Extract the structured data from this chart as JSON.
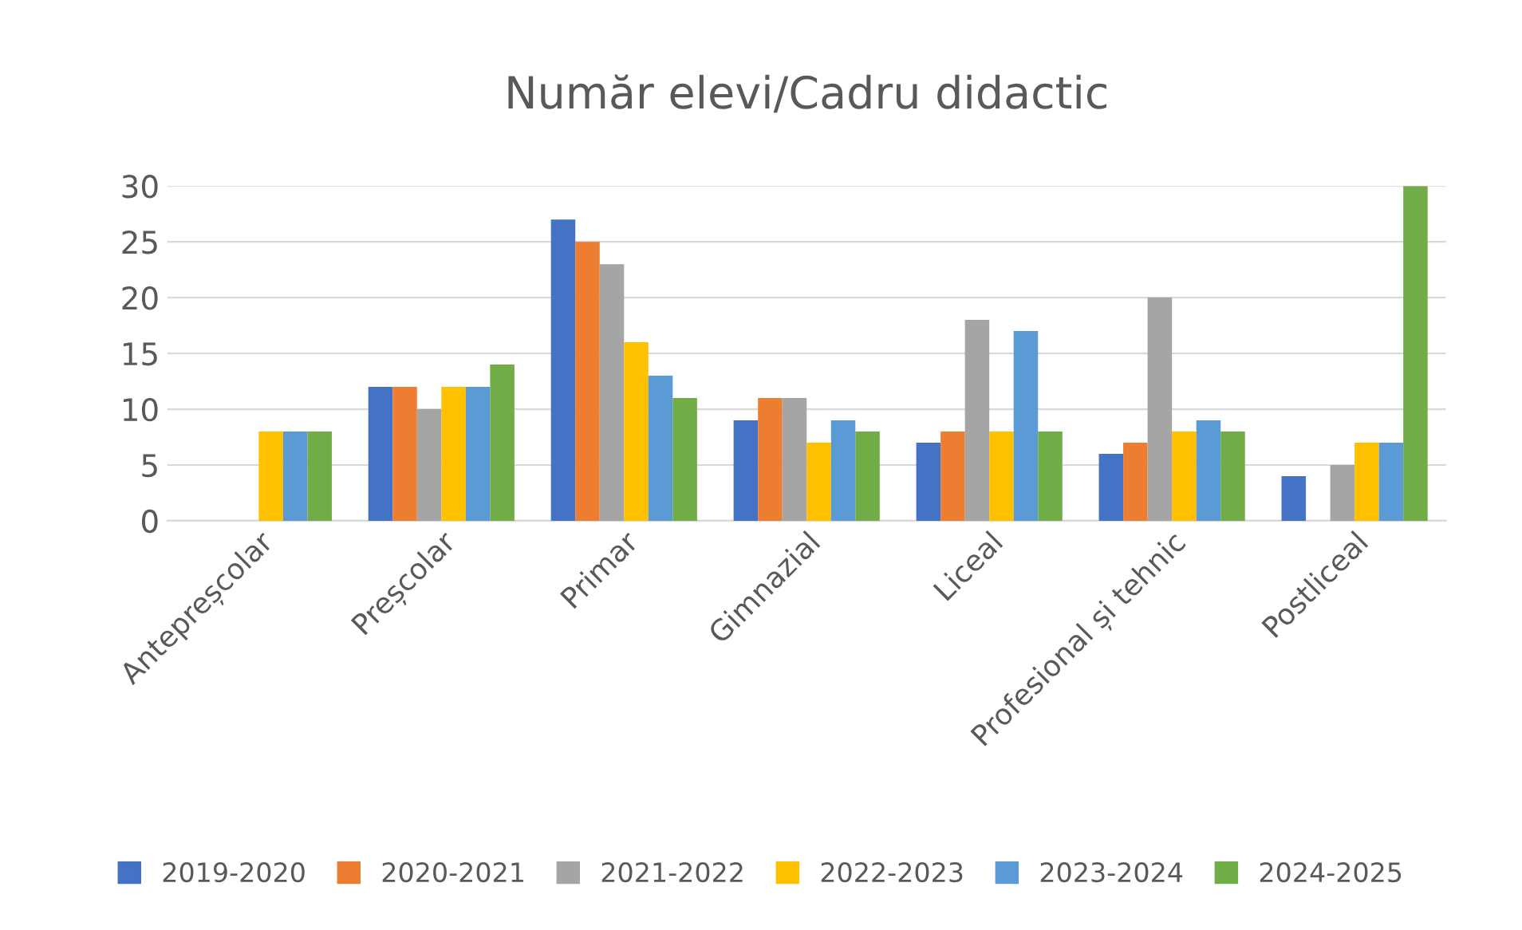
{
  "chart_data": {
    "type": "bar",
    "title": "Număr elevi/Cadru didactic",
    "categories": [
      "Antepreșcolar",
      "Preșcolar",
      "Primar",
      "Gimnazial",
      "Liceal",
      "Profesional și tehnic",
      "Postliceal"
    ],
    "series": [
      {
        "name": "2019-2020",
        "color": "#4472c4",
        "values": [
          null,
          12,
          27,
          9,
          7,
          6,
          4
        ]
      },
      {
        "name": "2020-2021",
        "color": "#ed7d31",
        "values": [
          null,
          12,
          25,
          11,
          8,
          7,
          0
        ]
      },
      {
        "name": "2021-2022",
        "color": "#a5a5a5",
        "values": [
          null,
          10,
          23,
          11,
          18,
          20,
          5
        ]
      },
      {
        "name": "2022-2023",
        "color": "#ffc000",
        "values": [
          8,
          12,
          16,
          7,
          8,
          8,
          7
        ]
      },
      {
        "name": "2023-2024",
        "color": "#5b9bd5",
        "values": [
          8,
          12,
          13,
          9,
          17,
          9,
          7
        ]
      },
      {
        "name": "2024-2025",
        "color": "#70ad47",
        "values": [
          8,
          14,
          11,
          8,
          8,
          8,
          30
        ]
      }
    ],
    "ylim": [
      0,
      30
    ],
    "yticks": [
      0,
      5,
      10,
      15,
      20,
      25,
      30
    ],
    "grid": "y",
    "legend": "bottom"
  }
}
